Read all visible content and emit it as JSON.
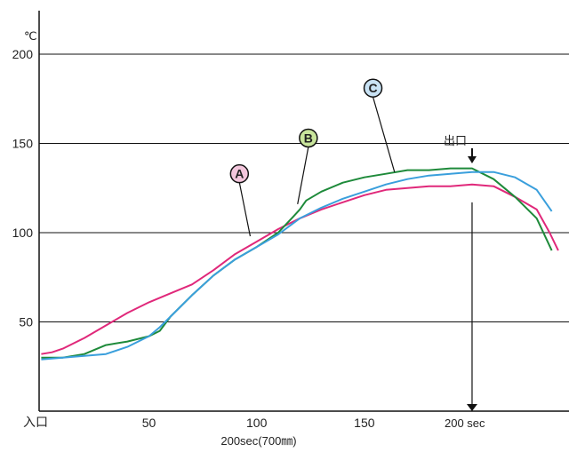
{
  "chart_data": {
    "type": "line",
    "unit_label": "℃",
    "xlabel": "200sec(700㎜)",
    "x_start_label": "入口",
    "exit_label": "出口",
    "exit_x": 200,
    "x_end_label": "200 sec",
    "xlim": [
      -1,
      245
    ],
    "ylim": [
      0,
      200
    ],
    "x_ticks": [
      {
        "value": 50,
        "label": "50"
      },
      {
        "value": 100,
        "label": "100"
      },
      {
        "value": 150,
        "label": "150"
      },
      {
        "value": 200,
        "label": "200"
      }
    ],
    "y_ticks": [
      {
        "value": 200,
        "label": "200"
      },
      {
        "value": 150,
        "label": "150"
      },
      {
        "value": 100,
        "label": "100"
      },
      {
        "value": 50,
        "label": "50"
      }
    ],
    "series": [
      {
        "name": "A",
        "color": "#e0287a",
        "label_color": "#f3c6dc",
        "points": [
          [
            0,
            32
          ],
          [
            5,
            33
          ],
          [
            10,
            35
          ],
          [
            20,
            41
          ],
          [
            30,
            48
          ],
          [
            40,
            55
          ],
          [
            50,
            61
          ],
          [
            60,
            66
          ],
          [
            70,
            71
          ],
          [
            80,
            79
          ],
          [
            90,
            88
          ],
          [
            100,
            95
          ],
          [
            110,
            102
          ],
          [
            120,
            108
          ],
          [
            130,
            113
          ],
          [
            140,
            117
          ],
          [
            150,
            121
          ],
          [
            160,
            124
          ],
          [
            170,
            125
          ],
          [
            180,
            126
          ],
          [
            190,
            126
          ],
          [
            200,
            127
          ],
          [
            210,
            126
          ],
          [
            220,
            120
          ],
          [
            230,
            113
          ],
          [
            236,
            100
          ],
          [
            240,
            90
          ]
        ],
        "callout_from": [
          92,
          133
        ],
        "callout_to": [
          97,
          98
        ]
      },
      {
        "name": "B",
        "color": "#1e8a3a",
        "label_color": "#c9e59c",
        "points": [
          [
            0,
            30
          ],
          [
            10,
            30
          ],
          [
            20,
            32
          ],
          [
            30,
            37
          ],
          [
            40,
            39
          ],
          [
            50,
            42
          ],
          [
            55,
            45
          ],
          [
            60,
            53
          ],
          [
            70,
            65
          ],
          [
            80,
            76
          ],
          [
            90,
            85
          ],
          [
            100,
            92
          ],
          [
            110,
            100
          ],
          [
            117,
            109
          ],
          [
            120,
            113
          ],
          [
            123,
            118
          ],
          [
            130,
            123
          ],
          [
            140,
            128
          ],
          [
            150,
            131
          ],
          [
            160,
            133
          ],
          [
            170,
            135
          ],
          [
            180,
            135
          ],
          [
            190,
            136
          ],
          [
            200,
            136
          ],
          [
            210,
            130
          ],
          [
            220,
            120
          ],
          [
            230,
            108
          ],
          [
            237,
            90
          ]
        ],
        "callout_from": [
          124,
          153
        ],
        "callout_to": [
          119,
          116
        ]
      },
      {
        "name": "C",
        "color": "#3a9fdc",
        "label_color": "#c8e2f4",
        "points": [
          [
            0,
            29
          ],
          [
            10,
            30
          ],
          [
            20,
            31
          ],
          [
            30,
            32
          ],
          [
            40,
            36
          ],
          [
            50,
            42
          ],
          [
            55,
            47
          ],
          [
            60,
            53
          ],
          [
            70,
            65
          ],
          [
            80,
            76
          ],
          [
            90,
            85
          ],
          [
            100,
            92
          ],
          [
            110,
            99
          ],
          [
            120,
            108
          ],
          [
            130,
            114
          ],
          [
            140,
            119
          ],
          [
            150,
            123
          ],
          [
            160,
            127
          ],
          [
            170,
            130
          ],
          [
            180,
            132
          ],
          [
            190,
            133
          ],
          [
            200,
            134
          ],
          [
            210,
            134
          ],
          [
            220,
            131
          ],
          [
            230,
            124
          ],
          [
            237,
            112
          ]
        ],
        "callout_from": [
          154,
          181
        ],
        "callout_to": [
          164,
          134
        ]
      }
    ]
  }
}
